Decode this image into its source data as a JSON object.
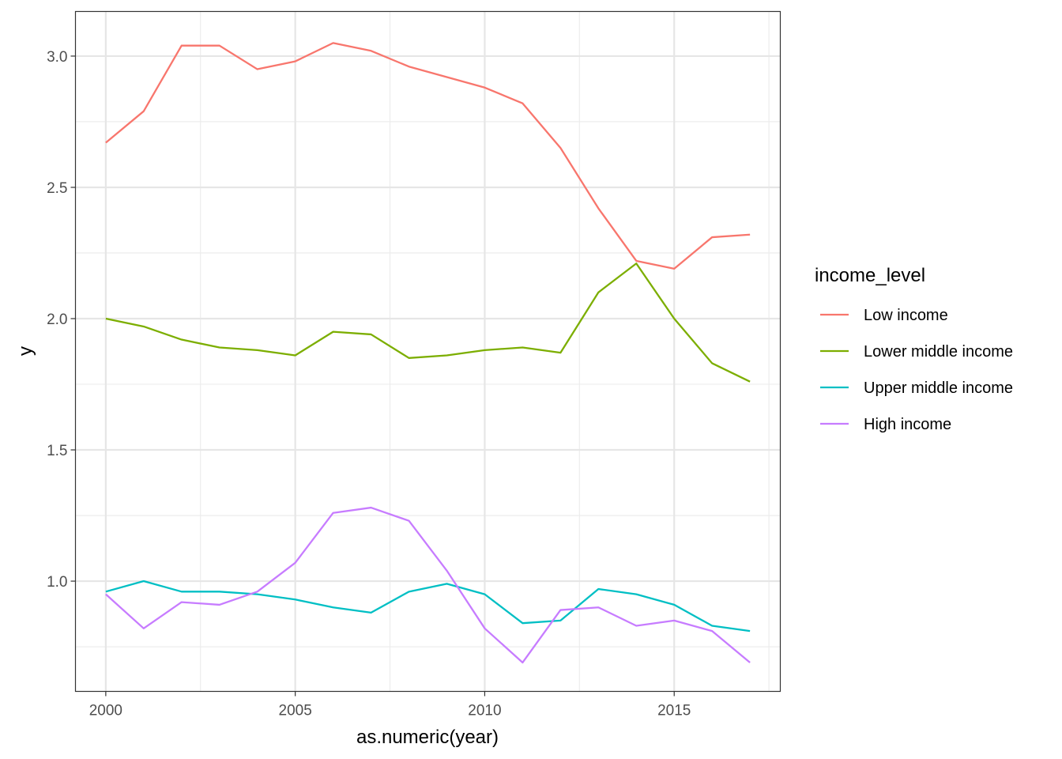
{
  "chart_data": {
    "type": "line",
    "xlabel": "as.numeric(year)",
    "ylabel": "y",
    "xlim": [
      1999.2,
      2017.8
    ],
    "ylim": [
      0.58,
      3.17
    ],
    "x_ticks": [
      2000,
      2005,
      2010,
      2015
    ],
    "x_minor_ticks": [
      2002.5,
      2007.5,
      2012.5,
      2017.5
    ],
    "y_ticks": [
      1.0,
      1.5,
      2.0,
      2.5,
      3.0
    ],
    "y_minor_ticks": [
      0.75,
      1.25,
      1.75,
      2.25,
      2.75
    ],
    "x_tick_labels": [
      "2000",
      "2005",
      "2010",
      "2015"
    ],
    "y_tick_labels": [
      "1.0",
      "1.5",
      "2.0",
      "2.5",
      "3.0"
    ],
    "grid": true,
    "legend_title": "income_level",
    "legend_position": "right",
    "x": [
      2000,
      2001,
      2002,
      2003,
      2004,
      2005,
      2006,
      2007,
      2008,
      2009,
      2010,
      2011,
      2012,
      2013,
      2014,
      2015,
      2016,
      2017
    ],
    "series": [
      {
        "name": "Low income",
        "color": "#F8766D",
        "values": [
          2.67,
          2.79,
          3.04,
          3.04,
          2.95,
          2.98,
          3.05,
          3.02,
          2.96,
          2.92,
          2.88,
          2.82,
          2.65,
          2.42,
          2.22,
          2.19,
          2.31,
          2.32
        ]
      },
      {
        "name": "Lower middle income",
        "color": "#7CAE00",
        "values": [
          2.0,
          1.97,
          1.92,
          1.89,
          1.88,
          1.86,
          1.95,
          1.94,
          1.85,
          1.86,
          1.88,
          1.89,
          1.87,
          2.1,
          2.21,
          2.0,
          1.83,
          1.76
        ]
      },
      {
        "name": "Upper middle income",
        "color": "#00BFC4",
        "values": [
          0.96,
          1.0,
          0.96,
          0.96,
          0.95,
          0.93,
          0.9,
          0.88,
          0.96,
          0.99,
          0.95,
          0.84,
          0.85,
          0.97,
          0.95,
          0.91,
          0.83,
          0.81
        ]
      },
      {
        "name": "High income",
        "color": "#C77CFF",
        "values": [
          0.95,
          0.82,
          0.92,
          0.91,
          0.96,
          1.07,
          1.26,
          1.28,
          1.23,
          1.04,
          0.82,
          0.69,
          0.89,
          0.9,
          0.83,
          0.85,
          0.81,
          0.69
        ]
      }
    ]
  }
}
